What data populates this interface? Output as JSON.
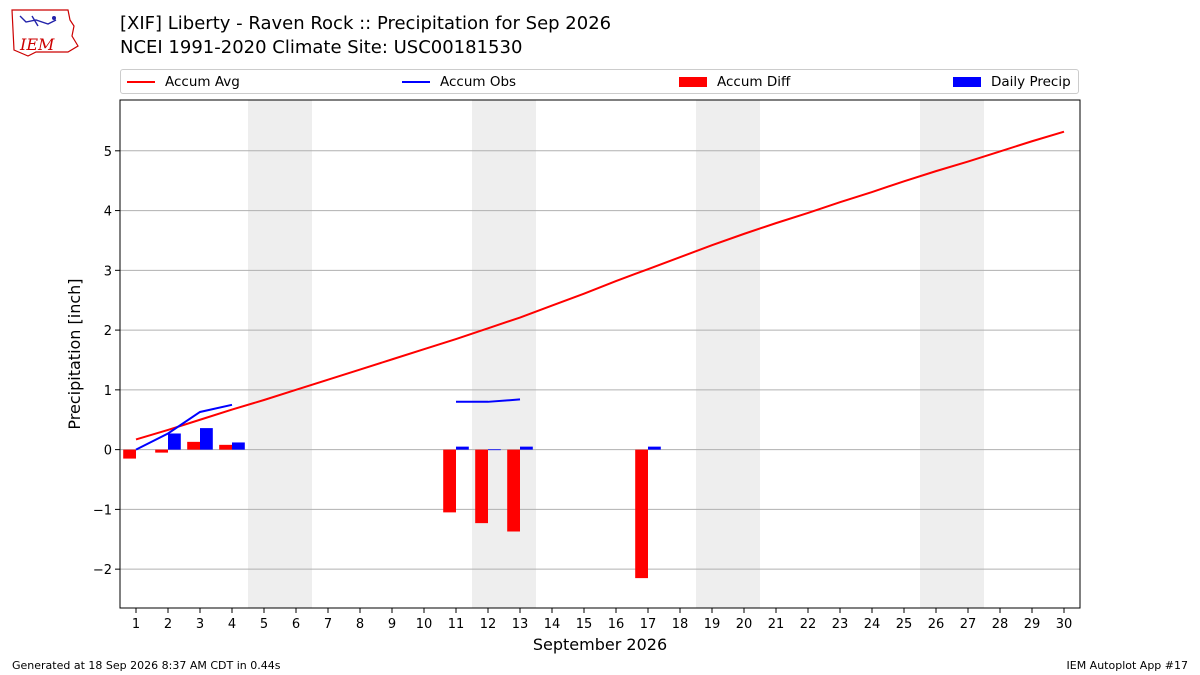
{
  "header": {
    "title_line1": "[XIF] Liberty - Raven Rock :: Precipitation for Sep 2026",
    "title_line2": "NCEI 1991-2020 Climate Site: USC00181530"
  },
  "logo": {
    "text": "IEM",
    "color": "#cc0000"
  },
  "footer": {
    "left": "Generated at 18 Sep 2026 8:37 AM CDT in 0.44s",
    "right": "IEM Autoplot App #17"
  },
  "chart_data": {
    "type": "bar",
    "xlabel": "September 2026",
    "ylabel": "Precipitation [inch]",
    "xlim": [
      0.5,
      30.5
    ],
    "ylim": [
      -2.65,
      5.85
    ],
    "yticks": [
      -2,
      -1,
      0,
      1,
      2,
      3,
      4,
      5
    ],
    "ytick_labels": [
      "−2",
      "−1",
      "0",
      "1",
      "2",
      "3",
      "4",
      "5"
    ],
    "x": [
      1,
      2,
      3,
      4,
      5,
      6,
      7,
      8,
      9,
      10,
      11,
      12,
      13,
      14,
      15,
      16,
      17,
      18,
      19,
      20,
      21,
      22,
      23,
      24,
      25,
      26,
      27,
      28,
      29,
      30
    ],
    "grid": "y",
    "weekend_bands": [
      [
        4.5,
        6.5
      ],
      [
        11.5,
        13.5
      ],
      [
        18.5,
        20.5
      ],
      [
        25.5,
        27.5
      ]
    ],
    "legend": {
      "placement": "top",
      "entries": [
        {
          "label": "Accum Avg",
          "kind": "line",
          "color": "#ff0000"
        },
        {
          "label": "Accum Obs",
          "kind": "line",
          "color": "#0000ff"
        },
        {
          "label": "Accum Diff",
          "kind": "bar",
          "color": "#ff0000"
        },
        {
          "label": "Daily Precip",
          "kind": "bar",
          "color": "#0000ff"
        }
      ]
    },
    "series": [
      {
        "name": "Accum Avg",
        "kind": "line",
        "color": "#ff0000",
        "x": [
          1,
          2,
          3,
          4,
          5,
          6,
          7,
          8,
          9,
          10,
          11,
          12,
          13,
          14,
          15,
          16,
          17,
          18,
          19,
          20,
          21,
          22,
          23,
          24,
          25,
          26,
          27,
          28,
          29,
          30
        ],
        "values": [
          0.17,
          0.33,
          0.5,
          0.67,
          0.83,
          1.0,
          1.17,
          1.34,
          1.51,
          1.68,
          1.85,
          2.03,
          2.21,
          2.41,
          2.61,
          2.82,
          3.02,
          3.22,
          3.42,
          3.61,
          3.79,
          3.96,
          4.14,
          4.31,
          4.49,
          4.66,
          4.82,
          4.99,
          5.16,
          5.32
        ]
      },
      {
        "name": "Accum Obs",
        "kind": "line",
        "color": "#0000ff",
        "segments": [
          {
            "x": [
              1,
              2,
              3,
              4
            ],
            "values": [
              0.0,
              0.27,
              0.63,
              0.75
            ]
          },
          {
            "x": [
              11,
              12,
              13
            ],
            "values": [
              0.8,
              0.8,
              0.84
            ]
          }
        ]
      },
      {
        "name": "Accum Diff",
        "kind": "bar",
        "color": "#ff0000",
        "offset": -0.2,
        "x": [
          1,
          2,
          3,
          4,
          11,
          12,
          13,
          17
        ],
        "values": [
          -0.15,
          -0.05,
          0.13,
          0.08,
          -1.05,
          -1.23,
          -1.37,
          -2.15
        ]
      },
      {
        "name": "Daily Precip",
        "kind": "bar",
        "color": "#0000ff",
        "offset": 0.2,
        "x": [
          2,
          3,
          4,
          11,
          12,
          13,
          17
        ],
        "values": [
          0.27,
          0.36,
          0.12,
          0.05,
          0.005,
          0.05,
          0.05
        ]
      }
    ]
  }
}
